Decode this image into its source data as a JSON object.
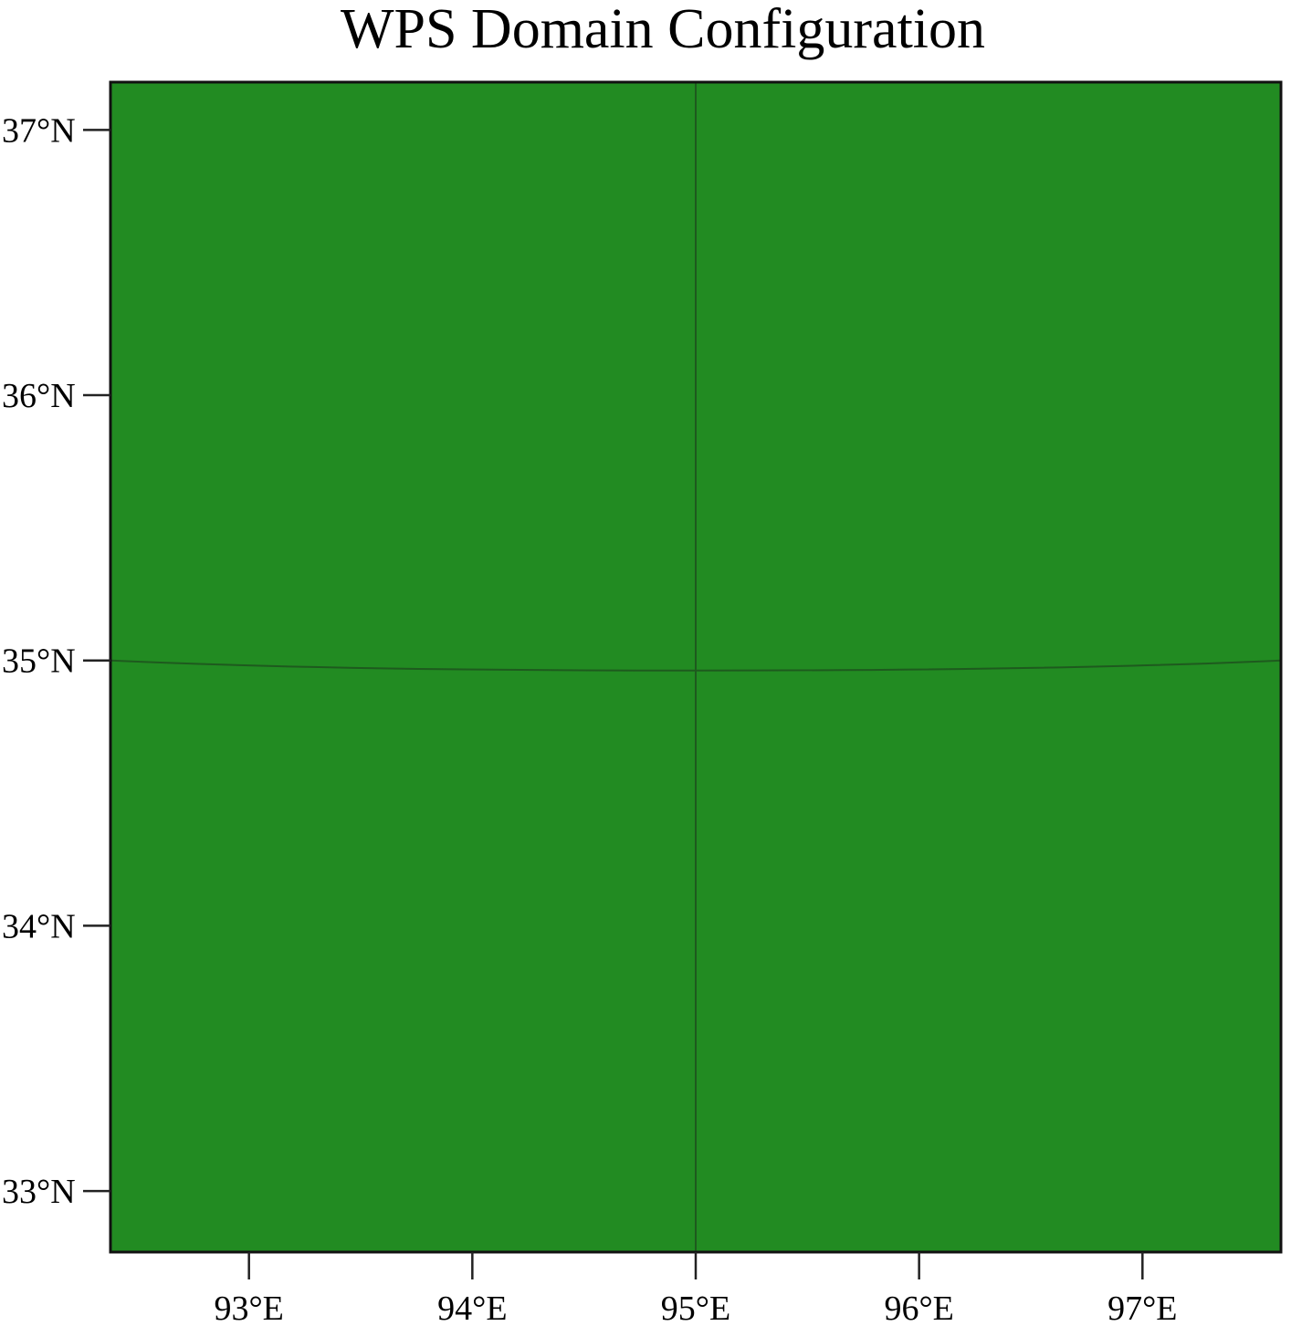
{
  "map": {
    "title": "WPS Domain Configuration",
    "land_color": "#228b22",
    "grid_color": "#1e5a1e",
    "frame_color": "#111111",
    "longitude_ticks": [
      {
        "value": 93,
        "label": "93°E"
      },
      {
        "value": 94,
        "label": "94°E"
      },
      {
        "value": 95,
        "label": "95°E"
      },
      {
        "value": 96,
        "label": "96°E"
      },
      {
        "value": 97,
        "label": "97°E"
      }
    ],
    "latitude_ticks": [
      {
        "value": 37,
        "label": "37°N"
      },
      {
        "value": 36,
        "label": "36°N"
      },
      {
        "value": 35,
        "label": "35°N"
      },
      {
        "value": 34,
        "label": "34°N"
      },
      {
        "value": 33,
        "label": "33°N"
      }
    ],
    "lon_range": [
      92.38,
      97.62
    ],
    "lat_range": [
      32.77,
      37.18
    ],
    "gridlines": {
      "longitude": 95,
      "latitude": 35
    }
  }
}
